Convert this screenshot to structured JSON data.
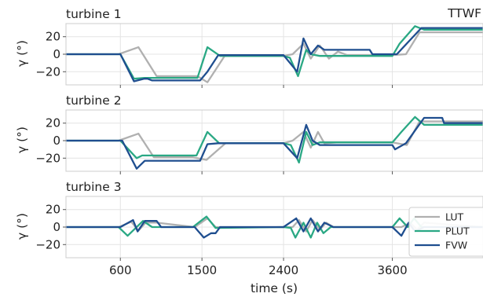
{
  "chart_data": {
    "type": "line",
    "corner_label": "TTWF",
    "xlabel": "time (s)",
    "ylabel": "γ (°)",
    "xlim": [
      0,
      4600
    ],
    "ylim": [
      -35,
      35
    ],
    "xticks": [
      600,
      1500,
      2400,
      3600
    ],
    "yticks": [
      20,
      0,
      -20
    ],
    "grid": true,
    "legend_position": "lower-right of bottom panel",
    "colors": {
      "LUT": "#b0b0b0",
      "PLUT": "#2aa884",
      "FVW": "#1f4e8f"
    },
    "panels": [
      {
        "title": "turbine 1",
        "series": [
          {
            "name": "LUT",
            "points": [
              [
                0,
                0
              ],
              [
                580,
                0
              ],
              [
                800,
                8
              ],
              [
                1000,
                -25
              ],
              [
                1450,
                -25
              ],
              [
                1560,
                -32
              ],
              [
                1750,
                -2
              ],
              [
                2400,
                -2
              ],
              [
                2500,
                0
              ],
              [
                2620,
                12
              ],
              [
                2700,
                -5
              ],
              [
                2800,
                10
              ],
              [
                2900,
                -5
              ],
              [
                3000,
                3
              ],
              [
                3100,
                -1
              ],
              [
                3600,
                -1
              ],
              [
                3750,
                0
              ],
              [
                3900,
                25
              ],
              [
                4600,
                25
              ]
            ]
          },
          {
            "name": "PLUT",
            "points": [
              [
                0,
                0
              ],
              [
                600,
                0
              ],
              [
                750,
                -28
              ],
              [
                870,
                -27
              ],
              [
                1450,
                -27
              ],
              [
                1560,
                8
              ],
              [
                1700,
                -2
              ],
              [
                2400,
                -2
              ],
              [
                2470,
                -4
              ],
              [
                2560,
                -25
              ],
              [
                2650,
                5
              ],
              [
                2700,
                0
              ],
              [
                2800,
                -2
              ],
              [
                3000,
                -2
              ],
              [
                3600,
                -2
              ],
              [
                3680,
                12
              ],
              [
                3850,
                32
              ],
              [
                3950,
                28
              ],
              [
                4600,
                28
              ]
            ]
          },
          {
            "name": "FVW",
            "points": [
              [
                0,
                0
              ],
              [
                600,
                0
              ],
              [
                750,
                -31
              ],
              [
                860,
                -28
              ],
              [
                900,
                -28
              ],
              [
                950,
                -30
              ],
              [
                1480,
                -30
              ],
              [
                1560,
                -20
              ],
              [
                1680,
                -1
              ],
              [
                2400,
                -1
              ],
              [
                2550,
                -20
              ],
              [
                2620,
                18
              ],
              [
                2700,
                0
              ],
              [
                2780,
                10
              ],
              [
                2850,
                5
              ],
              [
                3000,
                5
              ],
              [
                3350,
                5
              ],
              [
                3380,
                0
              ],
              [
                3600,
                0
              ],
              [
                3650,
                0
              ],
              [
                3920,
                30
              ],
              [
                4600,
                30
              ]
            ]
          }
        ]
      },
      {
        "title": "turbine 2",
        "series": [
          {
            "name": "LUT",
            "points": [
              [
                0,
                0
              ],
              [
                580,
                0
              ],
              [
                800,
                8
              ],
              [
                970,
                -19
              ],
              [
                1400,
                -19
              ],
              [
                1550,
                -22
              ],
              [
                1760,
                -3
              ],
              [
                2400,
                -3
              ],
              [
                2500,
                0
              ],
              [
                2620,
                10
              ],
              [
                2700,
                -8
              ],
              [
                2780,
                10
              ],
              [
                2850,
                -3
              ],
              [
                3000,
                -2
              ],
              [
                3600,
                -2
              ],
              [
                3760,
                -5
              ],
              [
                3900,
                22
              ],
              [
                4600,
                22
              ]
            ]
          },
          {
            "name": "PLUT",
            "points": [
              [
                0,
                0
              ],
              [
                600,
                0
              ],
              [
                780,
                -20
              ],
              [
                840,
                -17
              ],
              [
                1440,
                -17
              ],
              [
                1560,
                10
              ],
              [
                1690,
                -3
              ],
              [
                2400,
                -3
              ],
              [
                2480,
                -5
              ],
              [
                2570,
                -25
              ],
              [
                2650,
                10
              ],
              [
                2720,
                -5
              ],
              [
                2800,
                -2
              ],
              [
                3600,
                -2
              ],
              [
                3700,
                10
              ],
              [
                3850,
                27
              ],
              [
                3950,
                18
              ],
              [
                4600,
                18
              ]
            ]
          },
          {
            "name": "FVW",
            "points": [
              [
                0,
                0
              ],
              [
                620,
                0
              ],
              [
                780,
                -32
              ],
              [
                870,
                -23
              ],
              [
                1480,
                -23
              ],
              [
                1560,
                -4
              ],
              [
                1680,
                -3
              ],
              [
                2400,
                -3
              ],
              [
                2550,
                -20
              ],
              [
                2650,
                18
              ],
              [
                2720,
                0
              ],
              [
                2800,
                -5
              ],
              [
                3000,
                -5
              ],
              [
                3600,
                -5
              ],
              [
                3630,
                -10
              ],
              [
                3750,
                -3
              ],
              [
                3950,
                26
              ],
              [
                4150,
                26
              ],
              [
                4170,
                20
              ],
              [
                4600,
                20
              ]
            ]
          }
        ]
      },
      {
        "title": "turbine 3",
        "series": [
          {
            "name": "LUT",
            "points": [
              [
                0,
                0
              ],
              [
                580,
                0
              ],
              [
                720,
                6
              ],
              [
                800,
                -4
              ],
              [
                880,
                5
              ],
              [
                1000,
                5
              ],
              [
                1420,
                0
              ],
              [
                1560,
                10
              ],
              [
                1650,
                0
              ],
              [
                1800,
                0
              ],
              [
                2400,
                0
              ],
              [
                2500,
                0
              ],
              [
                2570,
                8
              ],
              [
                2650,
                -5
              ],
              [
                2720,
                8
              ],
              [
                2800,
                -3
              ],
              [
                2870,
                5
              ],
              [
                2950,
                0
              ],
              [
                3600,
                0
              ],
              [
                3700,
                0
              ],
              [
                3800,
                5
              ],
              [
                3870,
                -3
              ],
              [
                3950,
                5
              ],
              [
                4600,
                0
              ]
            ]
          },
          {
            "name": "PLUT",
            "points": [
              [
                0,
                0
              ],
              [
                580,
                0
              ],
              [
                680,
                -10
              ],
              [
                850,
                7
              ],
              [
                950,
                0
              ],
              [
                1000,
                0
              ],
              [
                1400,
                0
              ],
              [
                1550,
                12
              ],
              [
                1650,
                -1
              ],
              [
                2400,
                0
              ],
              [
                2480,
                -1
              ],
              [
                2530,
                -12
              ],
              [
                2620,
                5
              ],
              [
                2700,
                -12
              ],
              [
                2770,
                5
              ],
              [
                2840,
                -7
              ],
              [
                2920,
                0
              ],
              [
                3600,
                0
              ],
              [
                3680,
                10
              ],
              [
                3770,
                0
              ],
              [
                3840,
                10
              ],
              [
                3920,
                0
              ],
              [
                4600,
                0
              ]
            ]
          },
          {
            "name": "FVW",
            "points": [
              [
                0,
                0
              ],
              [
                600,
                0
              ],
              [
                740,
                8
              ],
              [
                790,
                -5
              ],
              [
                870,
                7
              ],
              [
                1000,
                7
              ],
              [
                1050,
                0
              ],
              [
                1420,
                0
              ],
              [
                1520,
                -12
              ],
              [
                1600,
                -7
              ],
              [
                1650,
                -7
              ],
              [
                1700,
                0
              ],
              [
                2400,
                0
              ],
              [
                2540,
                10
              ],
              [
                2620,
                -5
              ],
              [
                2700,
                10
              ],
              [
                2780,
                -5
              ],
              [
                2850,
                5
              ],
              [
                2950,
                0
              ],
              [
                3600,
                0
              ],
              [
                3700,
                -10
              ],
              [
                3780,
                5
              ],
              [
                3850,
                -5
              ],
              [
                3950,
                0
              ],
              [
                4600,
                0
              ]
            ]
          }
        ]
      }
    ],
    "legend": [
      "LUT",
      "PLUT",
      "FVW"
    ]
  }
}
